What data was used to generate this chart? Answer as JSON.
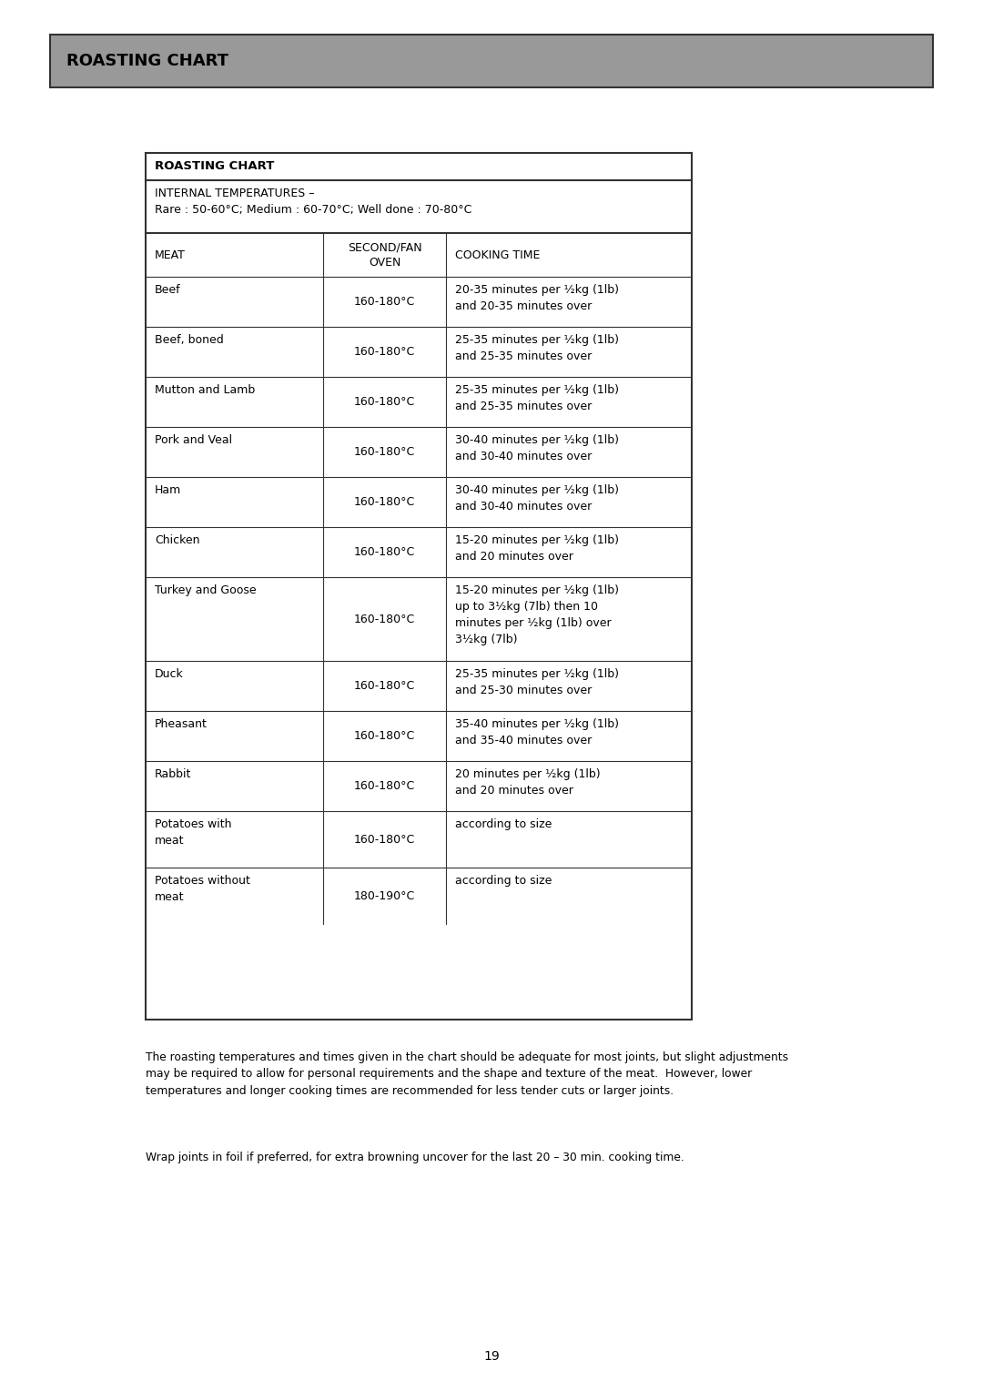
{
  "page_title": "ROASTING CHART",
  "header_bg": "#999999",
  "table_title": "ROASTING CHART",
  "internal_temps": "INTERNAL TEMPERATURES –\nRare : 50-60°C; Medium : 60-70°C; Well done : 70-80°C",
  "col_headers": [
    "MEAT",
    "SECOND/FAN\nOVEN",
    "COOKING TIME"
  ],
  "rows": [
    [
      "Beef",
      "160-180°C",
      "20-35 minutes per ½kg (1lb)\nand 20-35 minutes over"
    ],
    [
      "Beef, boned",
      "160-180°C",
      "25-35 minutes per ½kg (1lb)\nand 25-35 minutes over"
    ],
    [
      "Mutton and Lamb",
      "160-180°C",
      "25-35 minutes per ½kg (1lb)\nand 25-35 minutes over"
    ],
    [
      "Pork and Veal",
      "160-180°C",
      "30-40 minutes per ½kg (1lb)\nand 30-40 minutes over"
    ],
    [
      "Ham",
      "160-180°C",
      "30-40 minutes per ½kg (1lb)\nand 30-40 minutes over"
    ],
    [
      "Chicken",
      "160-180°C",
      "15-20 minutes per ½kg (1lb)\nand 20 minutes over"
    ],
    [
      "Turkey and Goose",
      "160-180°C",
      "15-20 minutes per ½kg (1lb)\nup to 3½kg (7lb) then 10\nminutes per ½kg (1lb) over\n3½kg (7lb)"
    ],
    [
      "Duck",
      "160-180°C",
      "25-35 minutes per ½kg (1lb)\nand 25-30 minutes over"
    ],
    [
      "Pheasant",
      "160-180°C",
      "35-40 minutes per ½kg (1lb)\nand 35-40 minutes over"
    ],
    [
      "Rabbit",
      "160-180°C",
      "20 minutes per ½kg (1lb)\nand 20 minutes over"
    ],
    [
      "Potatoes with\nmeat",
      "160-180°C",
      "according to size"
    ],
    [
      "Potatoes without\nmeat",
      "180-190°C",
      "according to size"
    ]
  ],
  "footnote1": "The roasting temperatures and times given in the chart should be adequate for most joints, but slight adjustments\nmay be required to allow for personal requirements and the shape and texture of the meat.  However, lower\ntemperatures and longer cooking times are recommended for less tender cuts or larger joints.",
  "footnote2": "Wrap joints in foil if preferred, for extra browning uncover for the last 20 – 30 min. cooking time.",
  "page_number": "19",
  "bg_color": "#ffffff",
  "text_color": "#000000"
}
